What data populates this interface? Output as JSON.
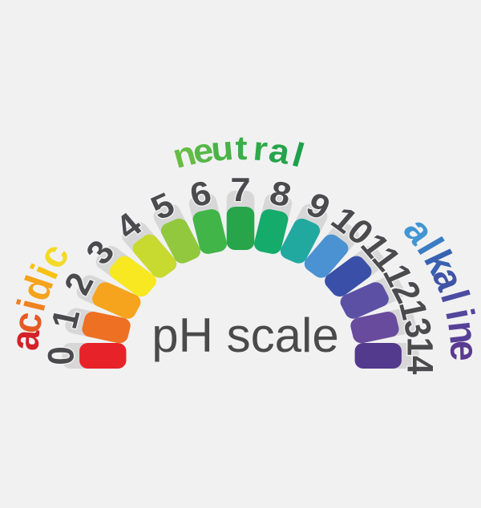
{
  "title": {
    "text": "pH scale",
    "color": "#4a4a4b"
  },
  "gauge": {
    "background_color": "#f1f1f2",
    "backing_color": "#d7d7d8",
    "number_color": "#4b4b4d",
    "number_halo_color": "#f4f4f5",
    "segments": [
      {
        "value": "0",
        "color": "#e72329"
      },
      {
        "value": "1",
        "color": "#ee7023"
      },
      {
        "value": "2",
        "color": "#f6a41d"
      },
      {
        "value": "3",
        "color": "#f7e822"
      },
      {
        "value": "4",
        "color": "#c8d92f"
      },
      {
        "value": "5",
        "color": "#92c83d"
      },
      {
        "value": "6",
        "color": "#42b549"
      },
      {
        "value": "7",
        "color": "#28a54b"
      },
      {
        "value": "8",
        "color": "#15ab6a"
      },
      {
        "value": "9",
        "color": "#21a9a0"
      },
      {
        "value": "10",
        "color": "#4a92d2"
      },
      {
        "value": "11",
        "color": "#3a50a8"
      },
      {
        "value": "12",
        "color": "#5c50a5"
      },
      {
        "value": "13",
        "color": "#694b9d"
      },
      {
        "value": "14",
        "color": "#533a8c"
      }
    ]
  },
  "labels": {
    "acidic": {
      "text": "acidic",
      "letter_colors": [
        "#d42127",
        "#e55a23",
        "#ef8220",
        "#f4a31b",
        "#f7c213",
        "#f3da25"
      ]
    },
    "neutral": {
      "text": "neutral",
      "letter_colors": [
        "#66bd45",
        "#57b847",
        "#49b348",
        "#3bae49",
        "#2fa94a",
        "#26a44b",
        "#1ea04c"
      ]
    },
    "alkaline": {
      "text": "alkaline",
      "letter_colors": [
        "#4295d2",
        "#3b7cc3",
        "#3862b1",
        "#3f54a6",
        "#4a4da2",
        "#52479d",
        "#564097",
        "#5a3a90"
      ]
    }
  }
}
